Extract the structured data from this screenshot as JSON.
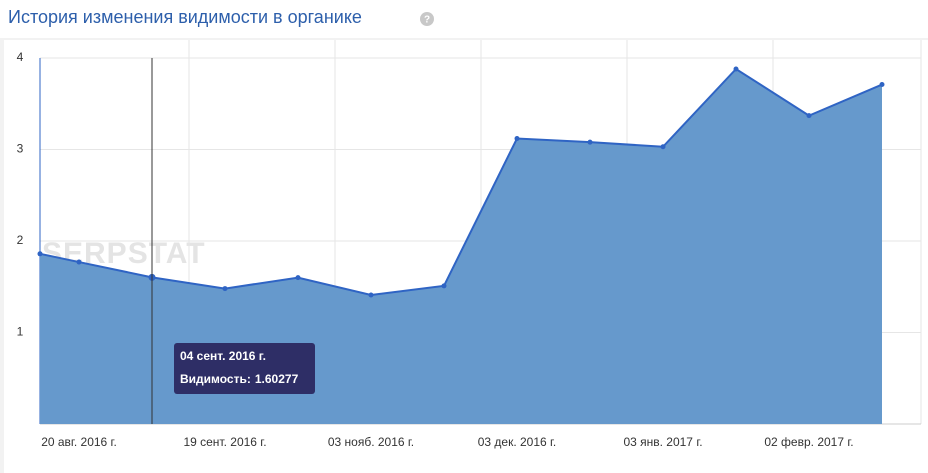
{
  "header": {
    "title": "История изменения видимости в органике",
    "help_icon": "?"
  },
  "chart_data": {
    "type": "area",
    "watermark": "SERPSTAT",
    "categories": [
      null,
      "20 авг. 2016 г.",
      null,
      "19 сент. 2016 г.",
      null,
      "03 нояб. 2016 г.",
      null,
      "03 дек. 2016 г.",
      null,
      "03 янв. 2017 г.",
      null,
      "02 февр. 2017 г.",
      null
    ],
    "series": [
      {
        "name": "Видимость",
        "color": "#2f64c4",
        "fill": "#6699cc",
        "values": [
          1.86,
          1.77,
          1.60277,
          1.48,
          1.6,
          1.41,
          1.51,
          3.12,
          3.08,
          3.03,
          3.88,
          3.37,
          3.71
        ]
      }
    ],
    "ylim": [
      0,
      4
    ],
    "yticks": [
      1,
      2,
      3,
      4
    ],
    "grid": true,
    "tooltip": {
      "date": "04 сент. 2016 г.",
      "label": "Видимость:",
      "index": 2
    }
  }
}
